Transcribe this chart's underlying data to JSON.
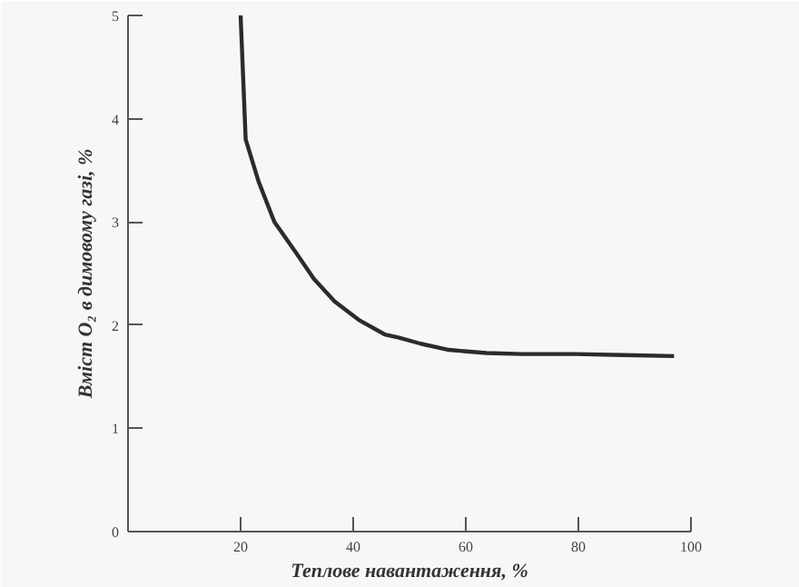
{
  "chart_data": {
    "type": "line",
    "xlabel": "Теплове навантаження, %",
    "ylabel": "Вміст O₂ в димовому газі, %",
    "x": [
      20,
      20.9,
      23.2,
      26,
      30,
      33,
      36.7,
      41,
      45.6,
      48,
      52,
      57,
      63.7,
      70,
      79.4,
      88,
      97
    ],
    "series": [
      {
        "color": "#2b2b2b",
        "values": [
          5,
          3.8,
          3.39,
          3.0,
          2.69,
          2.45,
          2.23,
          2.05,
          1.91,
          1.88,
          1.82,
          1.76,
          1.73,
          1.72,
          1.72,
          1.71,
          1.7
        ]
      }
    ],
    "xlim": [
      0,
      100
    ],
    "ylim": [
      0,
      5
    ],
    "xticks": [
      20,
      40,
      60,
      80,
      100
    ],
    "yticks": [
      0,
      1,
      2,
      3,
      4,
      5
    ],
    "grid": false,
    "line_style": "solid"
  }
}
